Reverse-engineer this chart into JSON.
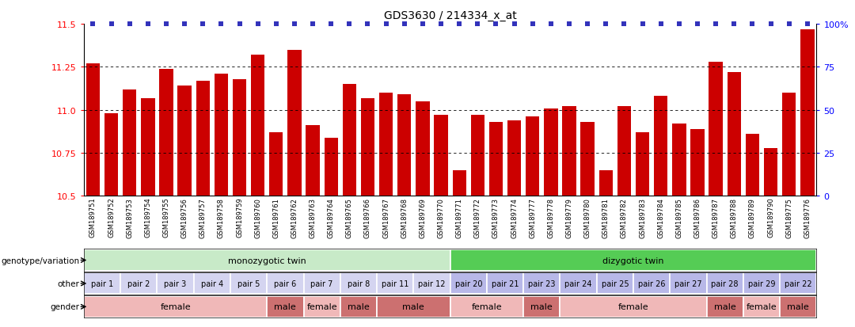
{
  "title": "GDS3630 / 214334_x_at",
  "samples": [
    "GSM189751",
    "GSM189752",
    "GSM189753",
    "GSM189754",
    "GSM189755",
    "GSM189756",
    "GSM189757",
    "GSM189758",
    "GSM189759",
    "GSM189760",
    "GSM189761",
    "GSM189762",
    "GSM189763",
    "GSM189764",
    "GSM189765",
    "GSM189766",
    "GSM189767",
    "GSM189768",
    "GSM189769",
    "GSM189770",
    "GSM189771",
    "GSM189772",
    "GSM189773",
    "GSM189774",
    "GSM189777",
    "GSM189778",
    "GSM189779",
    "GSM189780",
    "GSM189781",
    "GSM189782",
    "GSM189783",
    "GSM189784",
    "GSM189785",
    "GSM189786",
    "GSM189787",
    "GSM189788",
    "GSM189789",
    "GSM189790",
    "GSM189775",
    "GSM189776"
  ],
  "bar_values": [
    11.27,
    10.98,
    11.12,
    11.07,
    11.24,
    11.14,
    11.17,
    11.21,
    11.18,
    11.32,
    10.87,
    11.35,
    10.91,
    10.84,
    11.15,
    11.07,
    11.1,
    11.09,
    11.05,
    10.97,
    10.65,
    10.97,
    10.93,
    10.94,
    10.96,
    11.01,
    11.02,
    10.93,
    10.65,
    11.02,
    10.87,
    11.08,
    10.92,
    10.89,
    11.28,
    11.22,
    10.86,
    10.78,
    11.1,
    11.47
  ],
  "ymin": 10.5,
  "ymax": 11.5,
  "yticks_left": [
    10.5,
    10.75,
    11.0,
    11.25,
    11.5
  ],
  "yticks_right": [
    0,
    25,
    50,
    75,
    100
  ],
  "bar_color": "#cc0000",
  "percentile_color": "#3333bb",
  "grid_lines": [
    10.75,
    11.0,
    11.25
  ],
  "genotype_groups": [
    {
      "label": "monozygotic twin",
      "start": 0,
      "end": 19,
      "color": "#c8eac8"
    },
    {
      "label": "dizygotic twin",
      "start": 20,
      "end": 39,
      "color": "#55cc55"
    }
  ],
  "pair_groups": [
    {
      "label": "pair 1",
      "start": 0,
      "end": 1,
      "color": "#d4d4f0"
    },
    {
      "label": "pair 2",
      "start": 2,
      "end": 3,
      "color": "#d4d4f0"
    },
    {
      "label": "pair 3",
      "start": 4,
      "end": 5,
      "color": "#d4d4f0"
    },
    {
      "label": "pair 4",
      "start": 6,
      "end": 7,
      "color": "#d4d4f0"
    },
    {
      "label": "pair 5",
      "start": 8,
      "end": 9,
      "color": "#d4d4f0"
    },
    {
      "label": "pair 6",
      "start": 10,
      "end": 11,
      "color": "#d4d4f0"
    },
    {
      "label": "pair 7",
      "start": 12,
      "end": 13,
      "color": "#d4d4f0"
    },
    {
      "label": "pair 8",
      "start": 14,
      "end": 15,
      "color": "#d4d4f0"
    },
    {
      "label": "pair 11",
      "start": 16,
      "end": 17,
      "color": "#d4d4f0"
    },
    {
      "label": "pair 12",
      "start": 18,
      "end": 19,
      "color": "#d4d4f0"
    },
    {
      "label": "pair 20",
      "start": 20,
      "end": 21,
      "color": "#b8b8e8"
    },
    {
      "label": "pair 21",
      "start": 22,
      "end": 23,
      "color": "#b8b8e8"
    },
    {
      "label": "pair 23",
      "start": 24,
      "end": 25,
      "color": "#b8b8e8"
    },
    {
      "label": "pair 24",
      "start": 26,
      "end": 27,
      "color": "#b8b8e8"
    },
    {
      "label": "pair 25",
      "start": 28,
      "end": 29,
      "color": "#b8b8e8"
    },
    {
      "label": "pair 26",
      "start": 30,
      "end": 31,
      "color": "#b8b8e8"
    },
    {
      "label": "pair 27",
      "start": 32,
      "end": 33,
      "color": "#b8b8e8"
    },
    {
      "label": "pair 28",
      "start": 34,
      "end": 35,
      "color": "#b8b8e8"
    },
    {
      "label": "pair 29",
      "start": 36,
      "end": 37,
      "color": "#b8b8e8"
    },
    {
      "label": "pair 22",
      "start": 38,
      "end": 39,
      "color": "#b8b8e8"
    }
  ],
  "gender_groups": [
    {
      "label": "female",
      "start": 0,
      "end": 9,
      "color": "#f0b8b8"
    },
    {
      "label": "male",
      "start": 10,
      "end": 11,
      "color": "#cc7070"
    },
    {
      "label": "female",
      "start": 12,
      "end": 13,
      "color": "#f0b8b8"
    },
    {
      "label": "male",
      "start": 14,
      "end": 15,
      "color": "#cc7070"
    },
    {
      "label": "male",
      "start": 16,
      "end": 19,
      "color": "#cc7070"
    },
    {
      "label": "female",
      "start": 20,
      "end": 23,
      "color": "#f0b8b8"
    },
    {
      "label": "male",
      "start": 24,
      "end": 25,
      "color": "#cc7070"
    },
    {
      "label": "female",
      "start": 26,
      "end": 33,
      "color": "#f0b8b8"
    },
    {
      "label": "male",
      "start": 34,
      "end": 35,
      "color": "#cc7070"
    },
    {
      "label": "female",
      "start": 36,
      "end": 37,
      "color": "#f0b8b8"
    },
    {
      "label": "male",
      "start": 38,
      "end": 39,
      "color": "#cc7070"
    }
  ],
  "row_labels": [
    "genotype/variation",
    "other",
    "gender"
  ]
}
